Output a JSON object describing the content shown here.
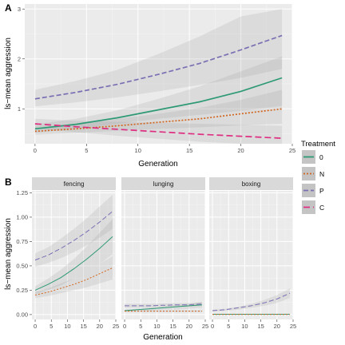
{
  "legend": {
    "title": "Treatment",
    "placement": "right",
    "entries": [
      {
        "label": "0",
        "color": "#2e9a74",
        "dash": "solid"
      },
      {
        "label": "N",
        "color": "#d1661f",
        "dash": "dotted"
      },
      {
        "label": "P",
        "color": "#7a6fb3",
        "dash": "dashed"
      },
      {
        "label": "C",
        "color": "#de2f82",
        "dash": "longdash"
      }
    ]
  },
  "chart_data": [
    {
      "panel": "A",
      "type": "line",
      "xlabel": "Generation",
      "ylabel": "ls−mean aggression",
      "xlim": [
        -1,
        25
      ],
      "ylim": [
        0.3,
        3.1
      ],
      "xticks": [
        0,
        5,
        10,
        15,
        20,
        25
      ],
      "yticks": [
        1,
        2,
        3
      ],
      "grid": true,
      "x": [
        0,
        4,
        8,
        12,
        16,
        20,
        24
      ],
      "series": [
        {
          "name": "0",
          "values": [
            0.6,
            0.69,
            0.82,
            0.98,
            1.14,
            1.35,
            1.62
          ],
          "lower": [
            0.52,
            0.6,
            0.7,
            0.8,
            0.88,
            0.96,
            1.06
          ],
          "upper": [
            0.69,
            0.8,
            0.97,
            1.2,
            1.45,
            1.75,
            2.05
          ]
        },
        {
          "name": "N",
          "values": [
            0.55,
            0.6,
            0.66,
            0.73,
            0.8,
            0.9,
            1.0
          ],
          "lower": [
            0.48,
            0.52,
            0.56,
            0.6,
            0.63,
            0.67,
            0.7
          ],
          "upper": [
            0.63,
            0.7,
            0.8,
            0.9,
            1.02,
            1.18,
            1.38
          ]
        },
        {
          "name": "P",
          "values": [
            1.2,
            1.33,
            1.49,
            1.69,
            1.91,
            2.18,
            2.47
          ],
          "lower": [
            1.05,
            1.13,
            1.23,
            1.35,
            1.48,
            1.62,
            1.8
          ],
          "upper": [
            1.38,
            1.56,
            1.78,
            2.1,
            2.45,
            2.85,
            3.0
          ]
        },
        {
          "name": "C",
          "values": [
            0.7,
            0.64,
            0.59,
            0.54,
            0.49,
            0.45,
            0.41
          ],
          "lower": [
            0.6,
            0.53,
            0.46,
            0.4,
            0.34,
            0.3,
            0.3
          ],
          "upper": [
            0.8,
            0.76,
            0.74,
            0.72,
            0.7,
            0.68,
            0.66
          ]
        }
      ]
    },
    {
      "panel": "B",
      "type": "line",
      "xlabel": "Generation",
      "ylabel": "ls−mean aggression",
      "xlim": [
        -1,
        25
      ],
      "ylim": [
        -0.05,
        1.27
      ],
      "xticks": [
        0,
        5,
        10,
        15,
        20,
        25
      ],
      "yticks": [
        0.0,
        0.25,
        0.5,
        0.75,
        1.0,
        1.25
      ],
      "ytick_labels": [
        "0.00",
        "0.25",
        "0.50",
        "0.75",
        "1.00",
        "1.25"
      ],
      "grid": true,
      "x": [
        0,
        4,
        8,
        12,
        16,
        20,
        24
      ],
      "facets": [
        {
          "name": "fencing",
          "series": [
            {
              "name": "0",
              "values": [
                0.25,
                0.31,
                0.38,
                0.47,
                0.57,
                0.68,
                0.8
              ],
              "lower": [
                0.21,
                0.25,
                0.3,
                0.37,
                0.44,
                0.52,
                0.62
              ],
              "upper": [
                0.29,
                0.37,
                0.46,
                0.57,
                0.7,
                0.84,
                0.98
              ]
            },
            {
              "name": "N",
              "values": [
                0.2,
                0.23,
                0.27,
                0.31,
                0.36,
                0.42,
                0.48
              ],
              "lower": [
                0.17,
                0.19,
                0.22,
                0.25,
                0.28,
                0.32,
                0.36
              ],
              "upper": [
                0.23,
                0.27,
                0.32,
                0.37,
                0.44,
                0.52,
                0.6
              ]
            },
            {
              "name": "P",
              "values": [
                0.56,
                0.61,
                0.68,
                0.76,
                0.85,
                0.95,
                1.06
              ],
              "lower": [
                0.49,
                0.53,
                0.58,
                0.64,
                0.71,
                0.79,
                0.88
              ],
              "upper": [
                0.63,
                0.69,
                0.78,
                0.88,
                0.99,
                1.11,
                1.23
              ]
            }
          ]
        },
        {
          "name": "lunging",
          "series": [
            {
              "name": "0",
              "values": [
                0.04,
                0.05,
                0.06,
                0.07,
                0.08,
                0.09,
                0.1
              ],
              "lower": [
                0.03,
                0.04,
                0.04,
                0.05,
                0.05,
                0.06,
                0.07
              ],
              "upper": [
                0.05,
                0.06,
                0.07,
                0.08,
                0.1,
                0.11,
                0.13
              ]
            },
            {
              "name": "N",
              "values": [
                0.035,
                0.035,
                0.035,
                0.035,
                0.035,
                0.035,
                0.035
              ],
              "lower": [
                0.025,
                0.025,
                0.025,
                0.025,
                0.025,
                0.025,
                0.025
              ],
              "upper": [
                0.045,
                0.045,
                0.045,
                0.045,
                0.045,
                0.045,
                0.045
              ]
            },
            {
              "name": "P",
              "values": [
                0.09,
                0.09,
                0.09,
                0.095,
                0.1,
                0.1,
                0.11
              ],
              "lower": [
                0.07,
                0.07,
                0.07,
                0.075,
                0.08,
                0.08,
                0.09
              ],
              "upper": [
                0.11,
                0.11,
                0.11,
                0.115,
                0.12,
                0.12,
                0.13
              ]
            }
          ]
        },
        {
          "name": "boxing",
          "series": [
            {
              "name": "0",
              "values": [
                0.003,
                0.003,
                0.003,
                0.003,
                0.003,
                0.003,
                0.003
              ],
              "lower": [
                0.002,
                0.002,
                0.002,
                0.002,
                0.002,
                0.002,
                0.002
              ],
              "upper": [
                0.004,
                0.004,
                0.004,
                0.004,
                0.004,
                0.004,
                0.004
              ]
            },
            {
              "name": "N",
              "values": [
                0.002,
                0.002,
                0.002,
                0.002,
                0.002,
                0.002,
                0.002
              ],
              "lower": [
                0.001,
                0.001,
                0.001,
                0.001,
                0.001,
                0.001,
                0.001
              ],
              "upper": [
                0.003,
                0.003,
                0.003,
                0.003,
                0.003,
                0.003,
                0.003
              ]
            },
            {
              "name": "P",
              "values": [
                0.04,
                0.05,
                0.07,
                0.09,
                0.12,
                0.16,
                0.22
              ],
              "lower": [
                0.03,
                0.04,
                0.05,
                0.07,
                0.09,
                0.12,
                0.17
              ],
              "upper": [
                0.05,
                0.06,
                0.08,
                0.11,
                0.15,
                0.2,
                0.27
              ]
            }
          ]
        }
      ]
    }
  ]
}
